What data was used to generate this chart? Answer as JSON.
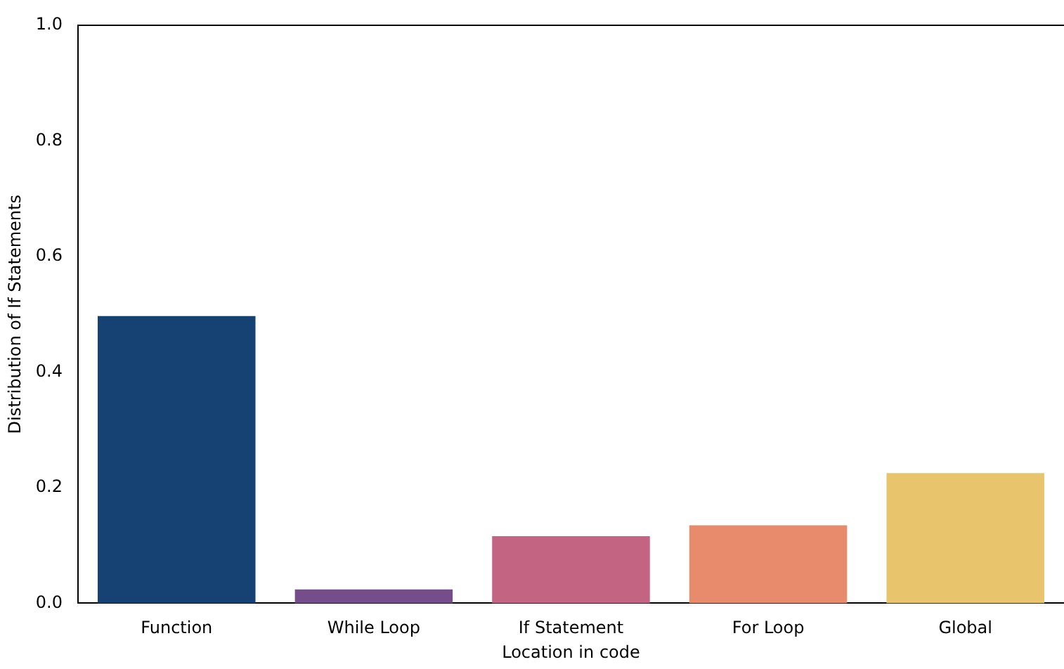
{
  "chart_data": {
    "type": "bar",
    "xlabel": "Location in code",
    "ylabel": "Distribution of If Statements",
    "categories": [
      "Function",
      "While Loop",
      "If Statement",
      "For Loop",
      "Global"
    ],
    "values": [
      0.497,
      0.024,
      0.116,
      0.135,
      0.225
    ],
    "colors": [
      "#154272",
      "#744d8a",
      "#c26482",
      "#e88b6d",
      "#e8c46c"
    ],
    "ylim": [
      0,
      1
    ],
    "yticks": [
      {
        "value": 0,
        "label": "0.0"
      },
      {
        "value": 0.2,
        "label": "0.2"
      },
      {
        "value": 0.4,
        "label": "0.4"
      },
      {
        "value": 0.6,
        "label": "0.6"
      },
      {
        "value": 0.8,
        "label": "0.8"
      },
      {
        "value": 1,
        "label": "1.0"
      }
    ],
    "grid": false,
    "legend": false
  }
}
